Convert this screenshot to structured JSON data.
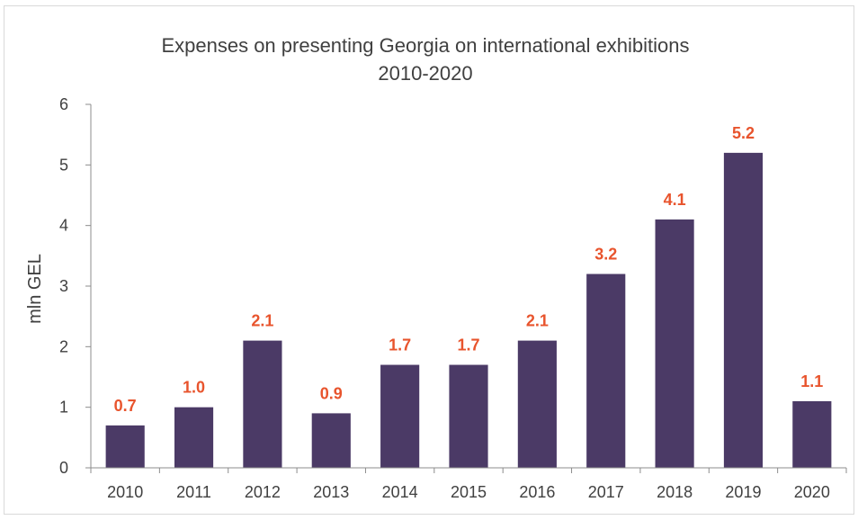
{
  "chart_data": {
    "type": "bar",
    "title_lines": [
      "Expenses on presenting Georgia on international exhibitions",
      "2010-2020"
    ],
    "xlabel": "",
    "ylabel": "mln GEL",
    "categories": [
      "2010",
      "2011",
      "2012",
      "2013",
      "2014",
      "2015",
      "2016",
      "2017",
      "2018",
      "2019",
      "2020"
    ],
    "values": [
      0.7,
      1.0,
      2.1,
      0.9,
      1.7,
      1.7,
      2.1,
      3.2,
      4.1,
      5.2,
      1.1
    ],
    "data_labels": [
      "0.7",
      "1.0",
      "2.1",
      "0.9",
      "1.7",
      "1.7",
      "2.1",
      "3.2",
      "4.1",
      "5.2",
      "1.1"
    ],
    "ylim": [
      0,
      6
    ],
    "yticks": [
      "0",
      "1",
      "2",
      "3",
      "4",
      "5",
      "6"
    ],
    "grid": false,
    "legend": "none",
    "colors": {
      "bar": "#4b3a66",
      "data_label": "#e8542d",
      "axis": "#8c8c8c",
      "text": "#404040"
    }
  }
}
